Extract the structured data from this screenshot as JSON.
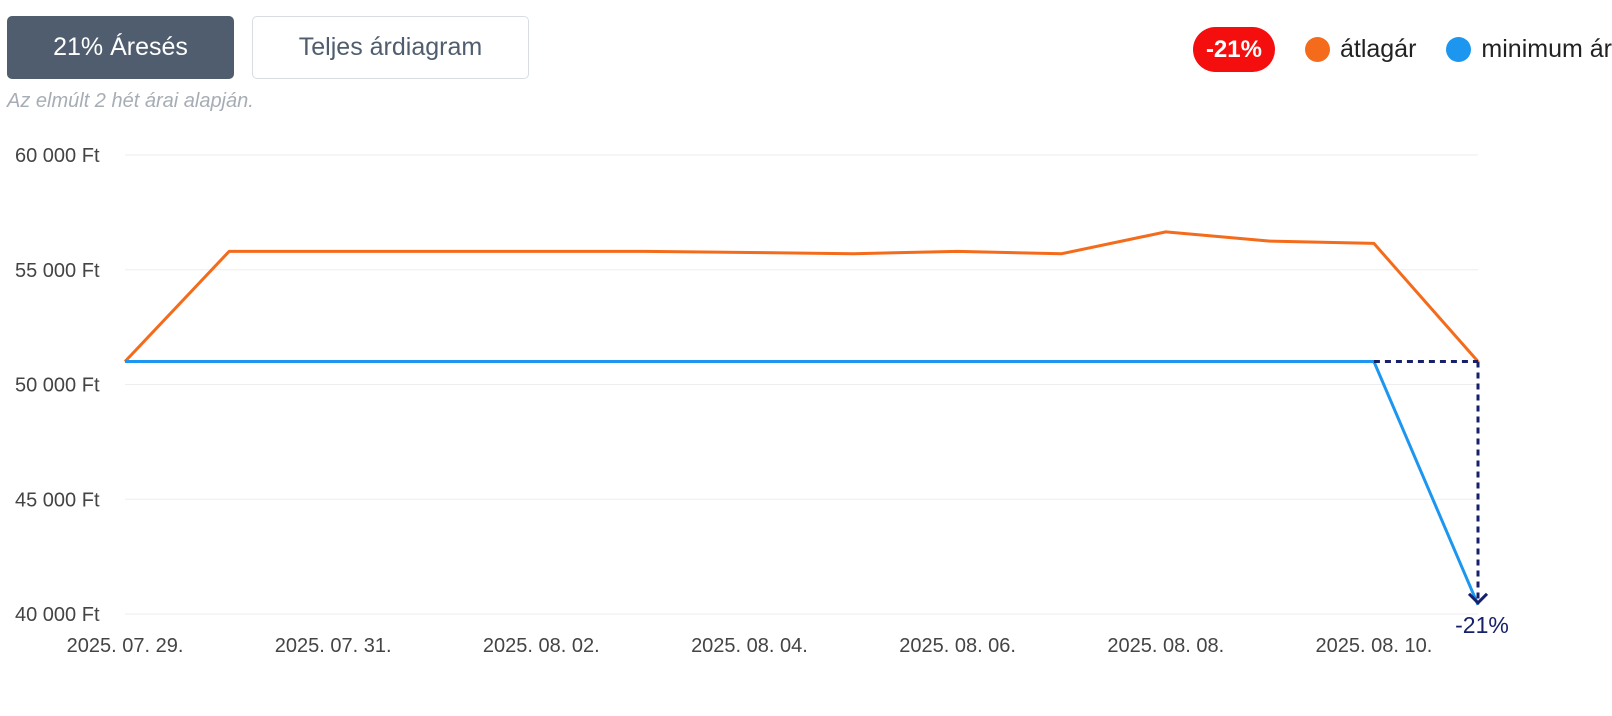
{
  "tabs": [
    {
      "label": "21% Áresés",
      "active": true
    },
    {
      "label": "Teljes árdiagram",
      "active": false
    }
  ],
  "subtitle": "Az elmúlt 2 hét árai alapján.",
  "legend": {
    "badge": "-21%",
    "items": [
      {
        "label": "átlagár",
        "color": "#f46b1b"
      },
      {
        "label": "minimum ár",
        "color": "#1d96f0"
      }
    ]
  },
  "colors": {
    "average": "#f46b1b",
    "minimum": "#1d96f0",
    "drop_annotation": "#16206b",
    "badge": "#f40e0e",
    "grid": "#eeeeee"
  },
  "chart_data": {
    "type": "line",
    "x": [
      "2025-07-29",
      "2025-07-30",
      "2025-07-31",
      "2025-08-01",
      "2025-08-02",
      "2025-08-03",
      "2025-08-04",
      "2025-08-05",
      "2025-08-06",
      "2025-08-07",
      "2025-08-08",
      "2025-08-09",
      "2025-08-10",
      "2025-08-11"
    ],
    "x_tick_labels": [
      "2025. 07. 29.",
      "2025. 07. 31.",
      "2025. 08. 02.",
      "2025. 08. 04.",
      "2025. 08. 06.",
      "2025. 08. 08.",
      "2025. 08. 10."
    ],
    "series": [
      {
        "name": "átlagár",
        "color": "#f46b1b",
        "values": [
          51000,
          55800,
          55800,
          55800,
          55800,
          55800,
          55750,
          55700,
          55800,
          55700,
          56650,
          56250,
          56150,
          51000
        ]
      },
      {
        "name": "minimum ár",
        "color": "#1d96f0",
        "values": [
          51000,
          51000,
          51000,
          51000,
          51000,
          51000,
          51000,
          51000,
          51000,
          51000,
          51000,
          51000,
          51000,
          40400
        ]
      }
    ],
    "yticks": [
      40000,
      45000,
      50000,
      55000,
      60000
    ],
    "ytick_labels": [
      "40 000 Ft",
      "45 000 Ft",
      "50 000 Ft",
      "55 000 Ft",
      "60 000 Ft"
    ],
    "ylim": [
      40000,
      60000
    ],
    "grid": true,
    "annotation": {
      "label": "-21%",
      "from_value": 51000,
      "to_value": 40400,
      "x": "2025-08-11"
    }
  }
}
